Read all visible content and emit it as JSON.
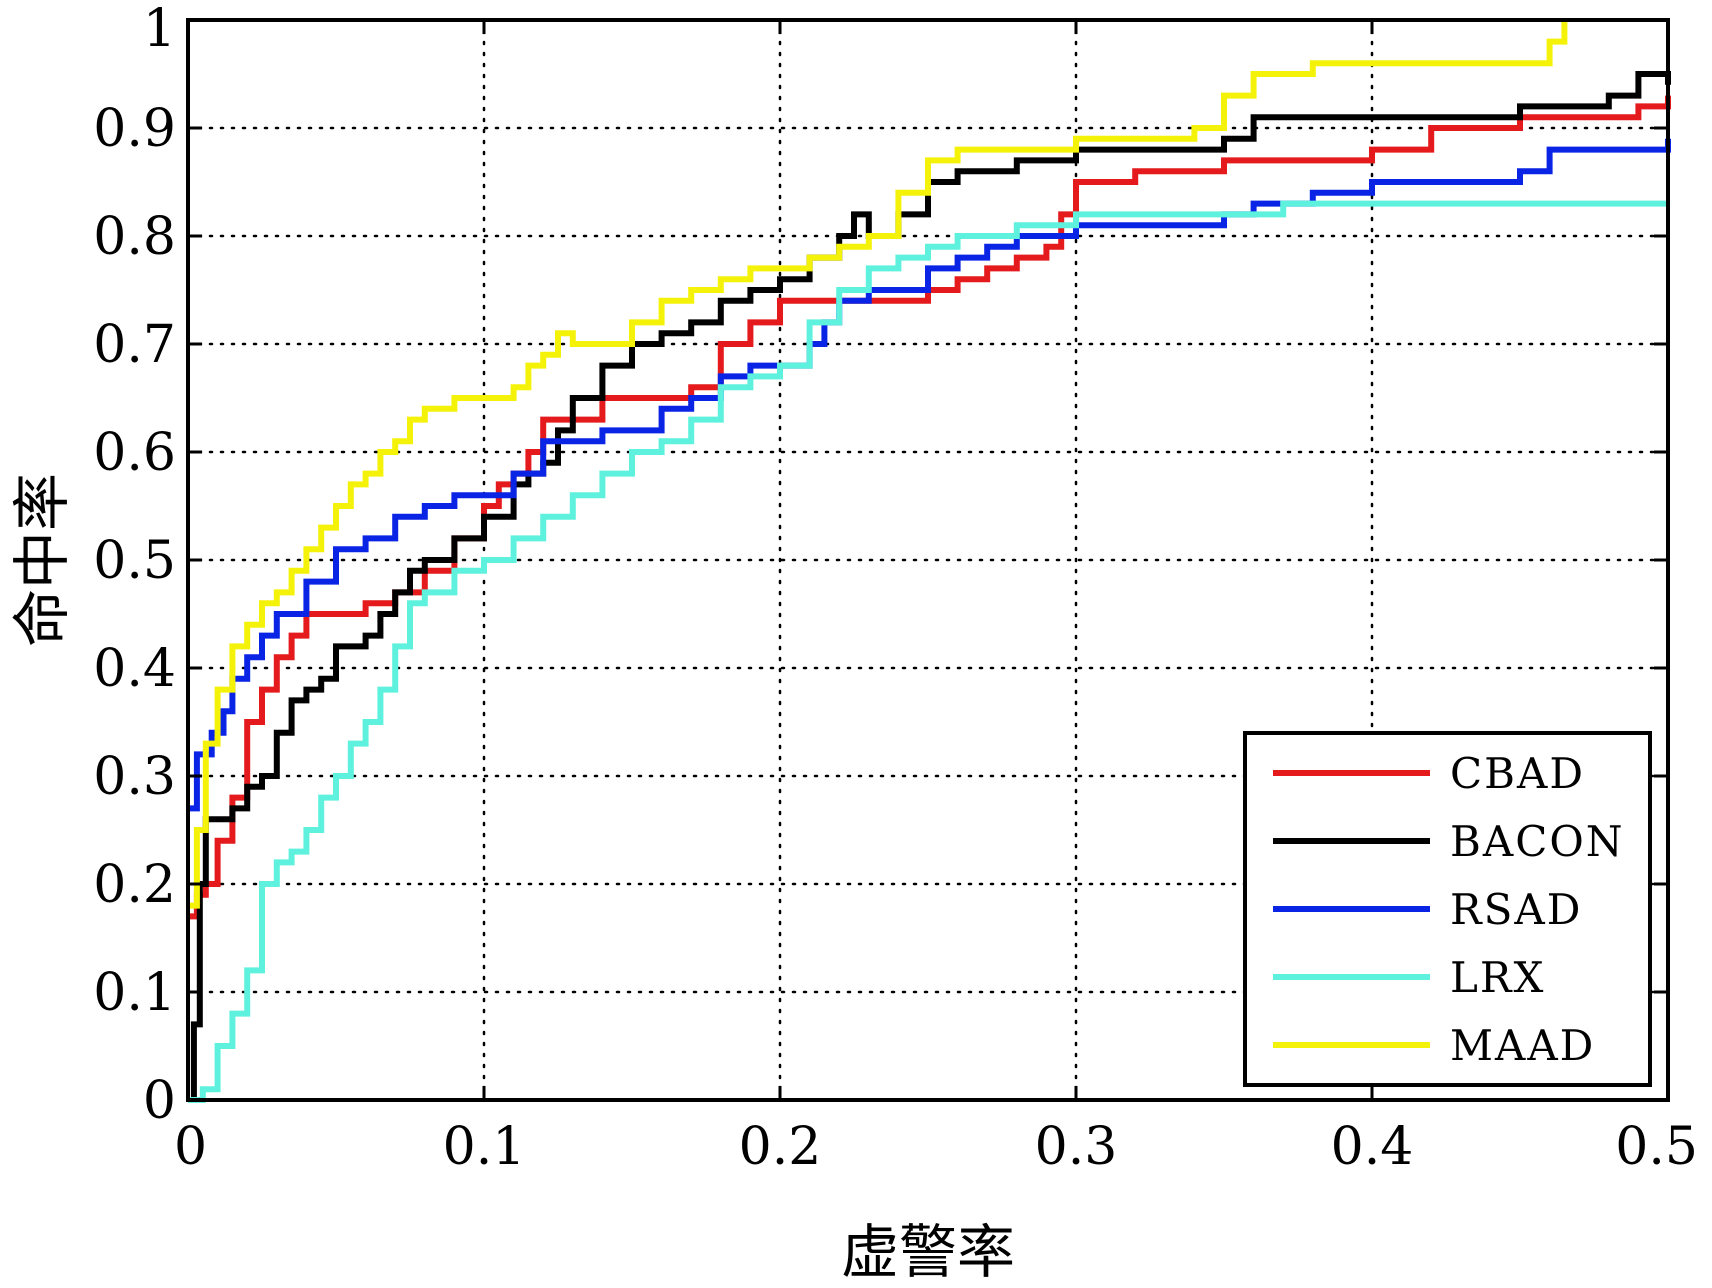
{
  "chart_data": {
    "type": "line",
    "title": "",
    "xlabel": "虚警率",
    "ylabel": "命中率",
    "xlim": [
      0,
      0.5
    ],
    "ylim": [
      0,
      1
    ],
    "grid": true,
    "legend_position": "bottom-right",
    "xticks": [
      {
        "value": 0,
        "label": "0"
      },
      {
        "value": 0.1,
        "label": "0.1"
      },
      {
        "value": 0.2,
        "label": "0.2"
      },
      {
        "value": 0.3,
        "label": "0.3"
      },
      {
        "value": 0.4,
        "label": "0.4"
      },
      {
        "value": 0.5,
        "label": "0.5"
      }
    ],
    "yticks": [
      {
        "value": 0,
        "label": "0"
      },
      {
        "value": 0.1,
        "label": "0.1"
      },
      {
        "value": 0.2,
        "label": "0.2"
      },
      {
        "value": 0.3,
        "label": "0.3"
      },
      {
        "value": 0.4,
        "label": "0.4"
      },
      {
        "value": 0.5,
        "label": "0.5"
      },
      {
        "value": 0.6,
        "label": "0.6"
      },
      {
        "value": 0.7,
        "label": "0.7"
      },
      {
        "value": 0.8,
        "label": "0.8"
      },
      {
        "value": 0.9,
        "label": "0.9"
      },
      {
        "value": 1,
        "label": "1"
      }
    ],
    "series": [
      {
        "name": "CBAD",
        "color": "#e41a1c",
        "x": [
          0,
          0.003,
          0.006,
          0.01,
          0.015,
          0.02,
          0.025,
          0.03,
          0.035,
          0.04,
          0.05,
          0.06,
          0.07,
          0.08,
          0.09,
          0.1,
          0.105,
          0.11,
          0.115,
          0.12,
          0.13,
          0.14,
          0.15,
          0.16,
          0.17,
          0.18,
          0.19,
          0.2,
          0.21,
          0.22,
          0.23,
          0.25,
          0.26,
          0.27,
          0.28,
          0.29,
          0.295,
          0.3,
          0.32,
          0.35,
          0.4,
          0.42,
          0.45,
          0.49,
          0.5
        ],
        "y": [
          0.17,
          0.19,
          0.2,
          0.24,
          0.28,
          0.35,
          0.38,
          0.41,
          0.43,
          0.45,
          0.45,
          0.46,
          0.47,
          0.49,
          0.52,
          0.55,
          0.57,
          0.58,
          0.6,
          0.63,
          0.63,
          0.65,
          0.65,
          0.65,
          0.66,
          0.7,
          0.72,
          0.74,
          0.74,
          0.74,
          0.74,
          0.75,
          0.76,
          0.77,
          0.78,
          0.79,
          0.82,
          0.85,
          0.86,
          0.87,
          0.88,
          0.9,
          0.91,
          0.92,
          0.93
        ]
      },
      {
        "name": "BACON",
        "color": "#000000",
        "x": [
          0,
          0.002,
          0.004,
          0.006,
          0.015,
          0.02,
          0.025,
          0.03,
          0.035,
          0.04,
          0.045,
          0.05,
          0.06,
          0.065,
          0.07,
          0.075,
          0.08,
          0.09,
          0.1,
          0.11,
          0.115,
          0.12,
          0.125,
          0.13,
          0.14,
          0.15,
          0.16,
          0.17,
          0.18,
          0.19,
          0.2,
          0.21,
          0.22,
          0.225,
          0.23,
          0.24,
          0.25,
          0.26,
          0.28,
          0.3,
          0.35,
          0.36,
          0.4,
          0.45,
          0.48,
          0.49,
          0.5
        ],
        "y": [
          0,
          0.07,
          0.2,
          0.26,
          0.27,
          0.29,
          0.3,
          0.34,
          0.37,
          0.38,
          0.39,
          0.42,
          0.43,
          0.45,
          0.47,
          0.49,
          0.5,
          0.52,
          0.54,
          0.57,
          0.58,
          0.59,
          0.62,
          0.65,
          0.68,
          0.7,
          0.71,
          0.72,
          0.74,
          0.75,
          0.76,
          0.78,
          0.8,
          0.82,
          0.8,
          0.82,
          0.85,
          0.86,
          0.87,
          0.88,
          0.89,
          0.91,
          0.91,
          0.92,
          0.93,
          0.95,
          0.94
        ]
      },
      {
        "name": "RSAD",
        "color": "#0a24e6",
        "x": [
          0,
          0.003,
          0.008,
          0.012,
          0.015,
          0.02,
          0.025,
          0.03,
          0.04,
          0.05,
          0.06,
          0.07,
          0.08,
          0.09,
          0.1,
          0.11,
          0.12,
          0.13,
          0.14,
          0.15,
          0.16,
          0.17,
          0.18,
          0.19,
          0.2,
          0.21,
          0.215,
          0.22,
          0.23,
          0.25,
          0.26,
          0.27,
          0.28,
          0.3,
          0.32,
          0.35,
          0.36,
          0.38,
          0.4,
          0.45,
          0.46,
          0.5
        ],
        "y": [
          0.27,
          0.32,
          0.34,
          0.36,
          0.39,
          0.41,
          0.43,
          0.45,
          0.48,
          0.51,
          0.52,
          0.54,
          0.55,
          0.56,
          0.56,
          0.58,
          0.61,
          0.61,
          0.62,
          0.62,
          0.64,
          0.65,
          0.67,
          0.68,
          0.68,
          0.7,
          0.72,
          0.74,
          0.75,
          0.77,
          0.78,
          0.79,
          0.8,
          0.81,
          0.81,
          0.82,
          0.83,
          0.84,
          0.85,
          0.86,
          0.88,
          0.89
        ]
      },
      {
        "name": "LRX",
        "color": "#5ef2de",
        "x": [
          0,
          0.005,
          0.01,
          0.015,
          0.02,
          0.025,
          0.03,
          0.035,
          0.04,
          0.045,
          0.05,
          0.055,
          0.06,
          0.065,
          0.07,
          0.075,
          0.08,
          0.09,
          0.1,
          0.11,
          0.12,
          0.13,
          0.14,
          0.15,
          0.16,
          0.17,
          0.18,
          0.19,
          0.2,
          0.21,
          0.22,
          0.23,
          0.24,
          0.25,
          0.26,
          0.27,
          0.28,
          0.3,
          0.35,
          0.37,
          0.4,
          0.45,
          0.5
        ],
        "y": [
          0,
          0.01,
          0.05,
          0.08,
          0.12,
          0.2,
          0.22,
          0.23,
          0.25,
          0.28,
          0.3,
          0.33,
          0.35,
          0.38,
          0.42,
          0.46,
          0.47,
          0.49,
          0.5,
          0.52,
          0.54,
          0.56,
          0.58,
          0.6,
          0.61,
          0.63,
          0.66,
          0.67,
          0.68,
          0.72,
          0.75,
          0.77,
          0.78,
          0.79,
          0.8,
          0.8,
          0.81,
          0.82,
          0.82,
          0.83,
          0.83,
          0.83,
          0.83
        ]
      },
      {
        "name": "MAAD",
        "color": "#f5f20a",
        "x": [
          0,
          0.003,
          0.006,
          0.01,
          0.015,
          0.02,
          0.025,
          0.03,
          0.035,
          0.04,
          0.045,
          0.05,
          0.055,
          0.06,
          0.065,
          0.07,
          0.075,
          0.08,
          0.09,
          0.1,
          0.11,
          0.115,
          0.12,
          0.125,
          0.13,
          0.14,
          0.15,
          0.16,
          0.17,
          0.18,
          0.19,
          0.2,
          0.21,
          0.22,
          0.23,
          0.24,
          0.25,
          0.26,
          0.28,
          0.3,
          0.34,
          0.35,
          0.36,
          0.38,
          0.4,
          0.45,
          0.46,
          0.465
        ],
        "y": [
          0.18,
          0.25,
          0.33,
          0.38,
          0.42,
          0.44,
          0.46,
          0.47,
          0.49,
          0.51,
          0.53,
          0.55,
          0.57,
          0.58,
          0.6,
          0.61,
          0.63,
          0.64,
          0.65,
          0.65,
          0.66,
          0.68,
          0.69,
          0.71,
          0.7,
          0.7,
          0.72,
          0.74,
          0.75,
          0.76,
          0.77,
          0.77,
          0.78,
          0.79,
          0.8,
          0.84,
          0.87,
          0.88,
          0.88,
          0.89,
          0.9,
          0.93,
          0.95,
          0.96,
          0.96,
          0.96,
          0.98,
          1.0
        ]
      }
    ]
  }
}
